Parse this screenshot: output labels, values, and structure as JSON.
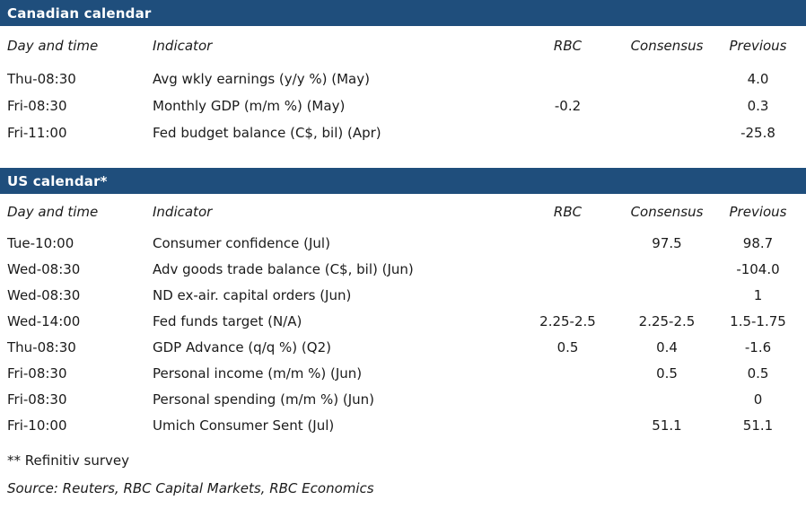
{
  "tables": [
    {
      "title": "Canadian calendar",
      "columns": {
        "day": "Day and time",
        "indicator": "Indicator",
        "rbc": "RBC",
        "consensus": "Consensus",
        "previous": "Previous"
      },
      "rows": [
        {
          "day": "Thu-08:30",
          "indicator": "Avg wkly earnings (y/y %) (May)",
          "rbc": "",
          "consensus": "",
          "previous": "4.0"
        },
        {
          "day": "Fri-08:30",
          "indicator": "Monthly GDP (m/m %) (May)",
          "rbc": "-0.2",
          "consensus": "",
          "previous": "0.3"
        },
        {
          "day": "Fri-11:00",
          "indicator": "Fed budget balance (C$, bil) (Apr)",
          "rbc": "",
          "consensus": "",
          "previous": "-25.8"
        }
      ]
    },
    {
      "title": "US calendar*",
      "columns": {
        "day": "Day and time",
        "indicator": "Indicator",
        "rbc": "RBC",
        "consensus": "Consensus",
        "previous": "Previous"
      },
      "rows": [
        {
          "day": "Tue-10:00",
          "indicator": "Consumer confidence (Jul)",
          "rbc": "",
          "consensus": "97.5",
          "previous": "98.7"
        },
        {
          "day": "Wed-08:30",
          "indicator": "Adv goods trade balance (C$, bil) (Jun)",
          "rbc": "",
          "consensus": "",
          "previous": "-104.0"
        },
        {
          "day": "Wed-08:30",
          "indicator": "ND ex-air. capital orders (Jun)",
          "rbc": "",
          "consensus": "",
          "previous": "1"
        },
        {
          "day": "Wed-14:00",
          "indicator": "Fed funds target (N/A)",
          "rbc": "2.25-2.5",
          "consensus": "2.25-2.5",
          "previous": "1.5-1.75"
        },
        {
          "day": "Thu-08:30",
          "indicator": "GDP Advance (q/q %) (Q2)",
          "rbc": "0.5",
          "consensus": "0.4",
          "previous": "-1.6"
        },
        {
          "day": "Fri-08:30",
          "indicator": "Personal income (m/m %) (Jun)",
          "rbc": "",
          "consensus": "0.5",
          "previous": "0.5"
        },
        {
          "day": "Fri-08:30",
          "indicator": "Personal spending (m/m %) (Jun)",
          "rbc": "",
          "consensus": "",
          "previous": "0"
        },
        {
          "day": "Fri-10:00",
          "indicator": "Umich Consumer Sent (Jul)",
          "rbc": "",
          "consensus": "51.1",
          "previous": "51.1"
        }
      ]
    }
  ],
  "footnotes": {
    "survey_note": "** Refinitiv survey",
    "source": "Source: Reuters, RBC Capital Markets, RBC Economics"
  },
  "colors": {
    "header_bar": "#1f4e7c",
    "header_text": "#ffffff",
    "body_text": "#1b1b1b"
  }
}
